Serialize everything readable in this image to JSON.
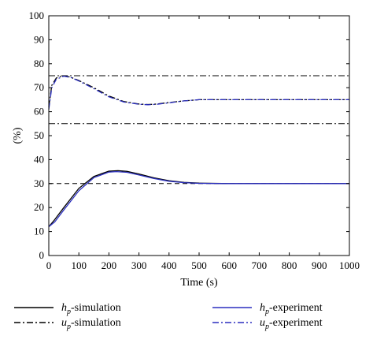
{
  "chart_data": {
    "type": "line",
    "xlabel": "Time (s)",
    "ylabel": "(%)",
    "xlim": [
      0,
      1000
    ],
    "ylim": [
      0,
      100
    ],
    "xticks": [
      0,
      100,
      200,
      300,
      400,
      500,
      600,
      700,
      800,
      900,
      1000
    ],
    "yticks": [
      0,
      10,
      20,
      30,
      40,
      50,
      60,
      70,
      80,
      90,
      100
    ],
    "grid": false,
    "legend_position": "bottom",
    "reference_lines": [
      {
        "y": 75,
        "style": "dashdot",
        "color": "#000000"
      },
      {
        "y": 55,
        "style": "dashdot",
        "color": "#000000"
      },
      {
        "y": 30,
        "style": "dashed",
        "color": "#000000"
      }
    ],
    "series": [
      {
        "name_main": "h",
        "name_sub": "p",
        "name_suffix": "-simulation",
        "color": "#000000",
        "style": "solid",
        "x": [
          0,
          20,
          50,
          100,
          150,
          200,
          230,
          260,
          300,
          350,
          400,
          450,
          500,
          600,
          700,
          800,
          900,
          1000
        ],
        "y": [
          12,
          15,
          20,
          28,
          33,
          35.2,
          35.4,
          35.1,
          34.0,
          32.4,
          31.2,
          30.5,
          30.2,
          30.0,
          30.0,
          30.0,
          30.0,
          30.0
        ]
      },
      {
        "name_main": "u",
        "name_sub": "p",
        "name_suffix": "-simulation",
        "color": "#000000",
        "style": "dashdot",
        "x": [
          0,
          10,
          25,
          45,
          70,
          100,
          150,
          200,
          250,
          300,
          330,
          360,
          400,
          450,
          500,
          600,
          700,
          800,
          900,
          1000
        ],
        "y": [
          62,
          71,
          74,
          75,
          74.5,
          73,
          70,
          66.5,
          64.2,
          63.2,
          63,
          63.2,
          63.8,
          64.5,
          65,
          65,
          65,
          65,
          65,
          65
        ]
      },
      {
        "name_main": "h",
        "name_sub": "p",
        "name_suffix": "-experiment",
        "color": "#2b2fbf",
        "style": "solid",
        "x": [
          0,
          20,
          50,
          100,
          150,
          200,
          225,
          260,
          300,
          350,
          400,
          450,
          500,
          600,
          700,
          800,
          900,
          1000
        ],
        "y": [
          12,
          14,
          19,
          27,
          32.5,
          34.8,
          35.0,
          34.7,
          33.6,
          32.1,
          31.0,
          30.4,
          30.1,
          30.0,
          30.0,
          30.0,
          30.0,
          30.0
        ]
      },
      {
        "name_main": "u",
        "name_sub": "p",
        "name_suffix": "-experiment",
        "color": "#2b2fbf",
        "style": "dashdot",
        "x": [
          0,
          10,
          25,
          50,
          75,
          100,
          150,
          200,
          250,
          300,
          330,
          360,
          400,
          450,
          500,
          600,
          700,
          800,
          900,
          1000
        ],
        "y": [
          61,
          70,
          73.5,
          74.8,
          74.2,
          72.8,
          69.6,
          66.2,
          64.0,
          63.1,
          62.9,
          63.1,
          63.7,
          64.5,
          65,
          65,
          65,
          65,
          65,
          65
        ]
      }
    ]
  }
}
